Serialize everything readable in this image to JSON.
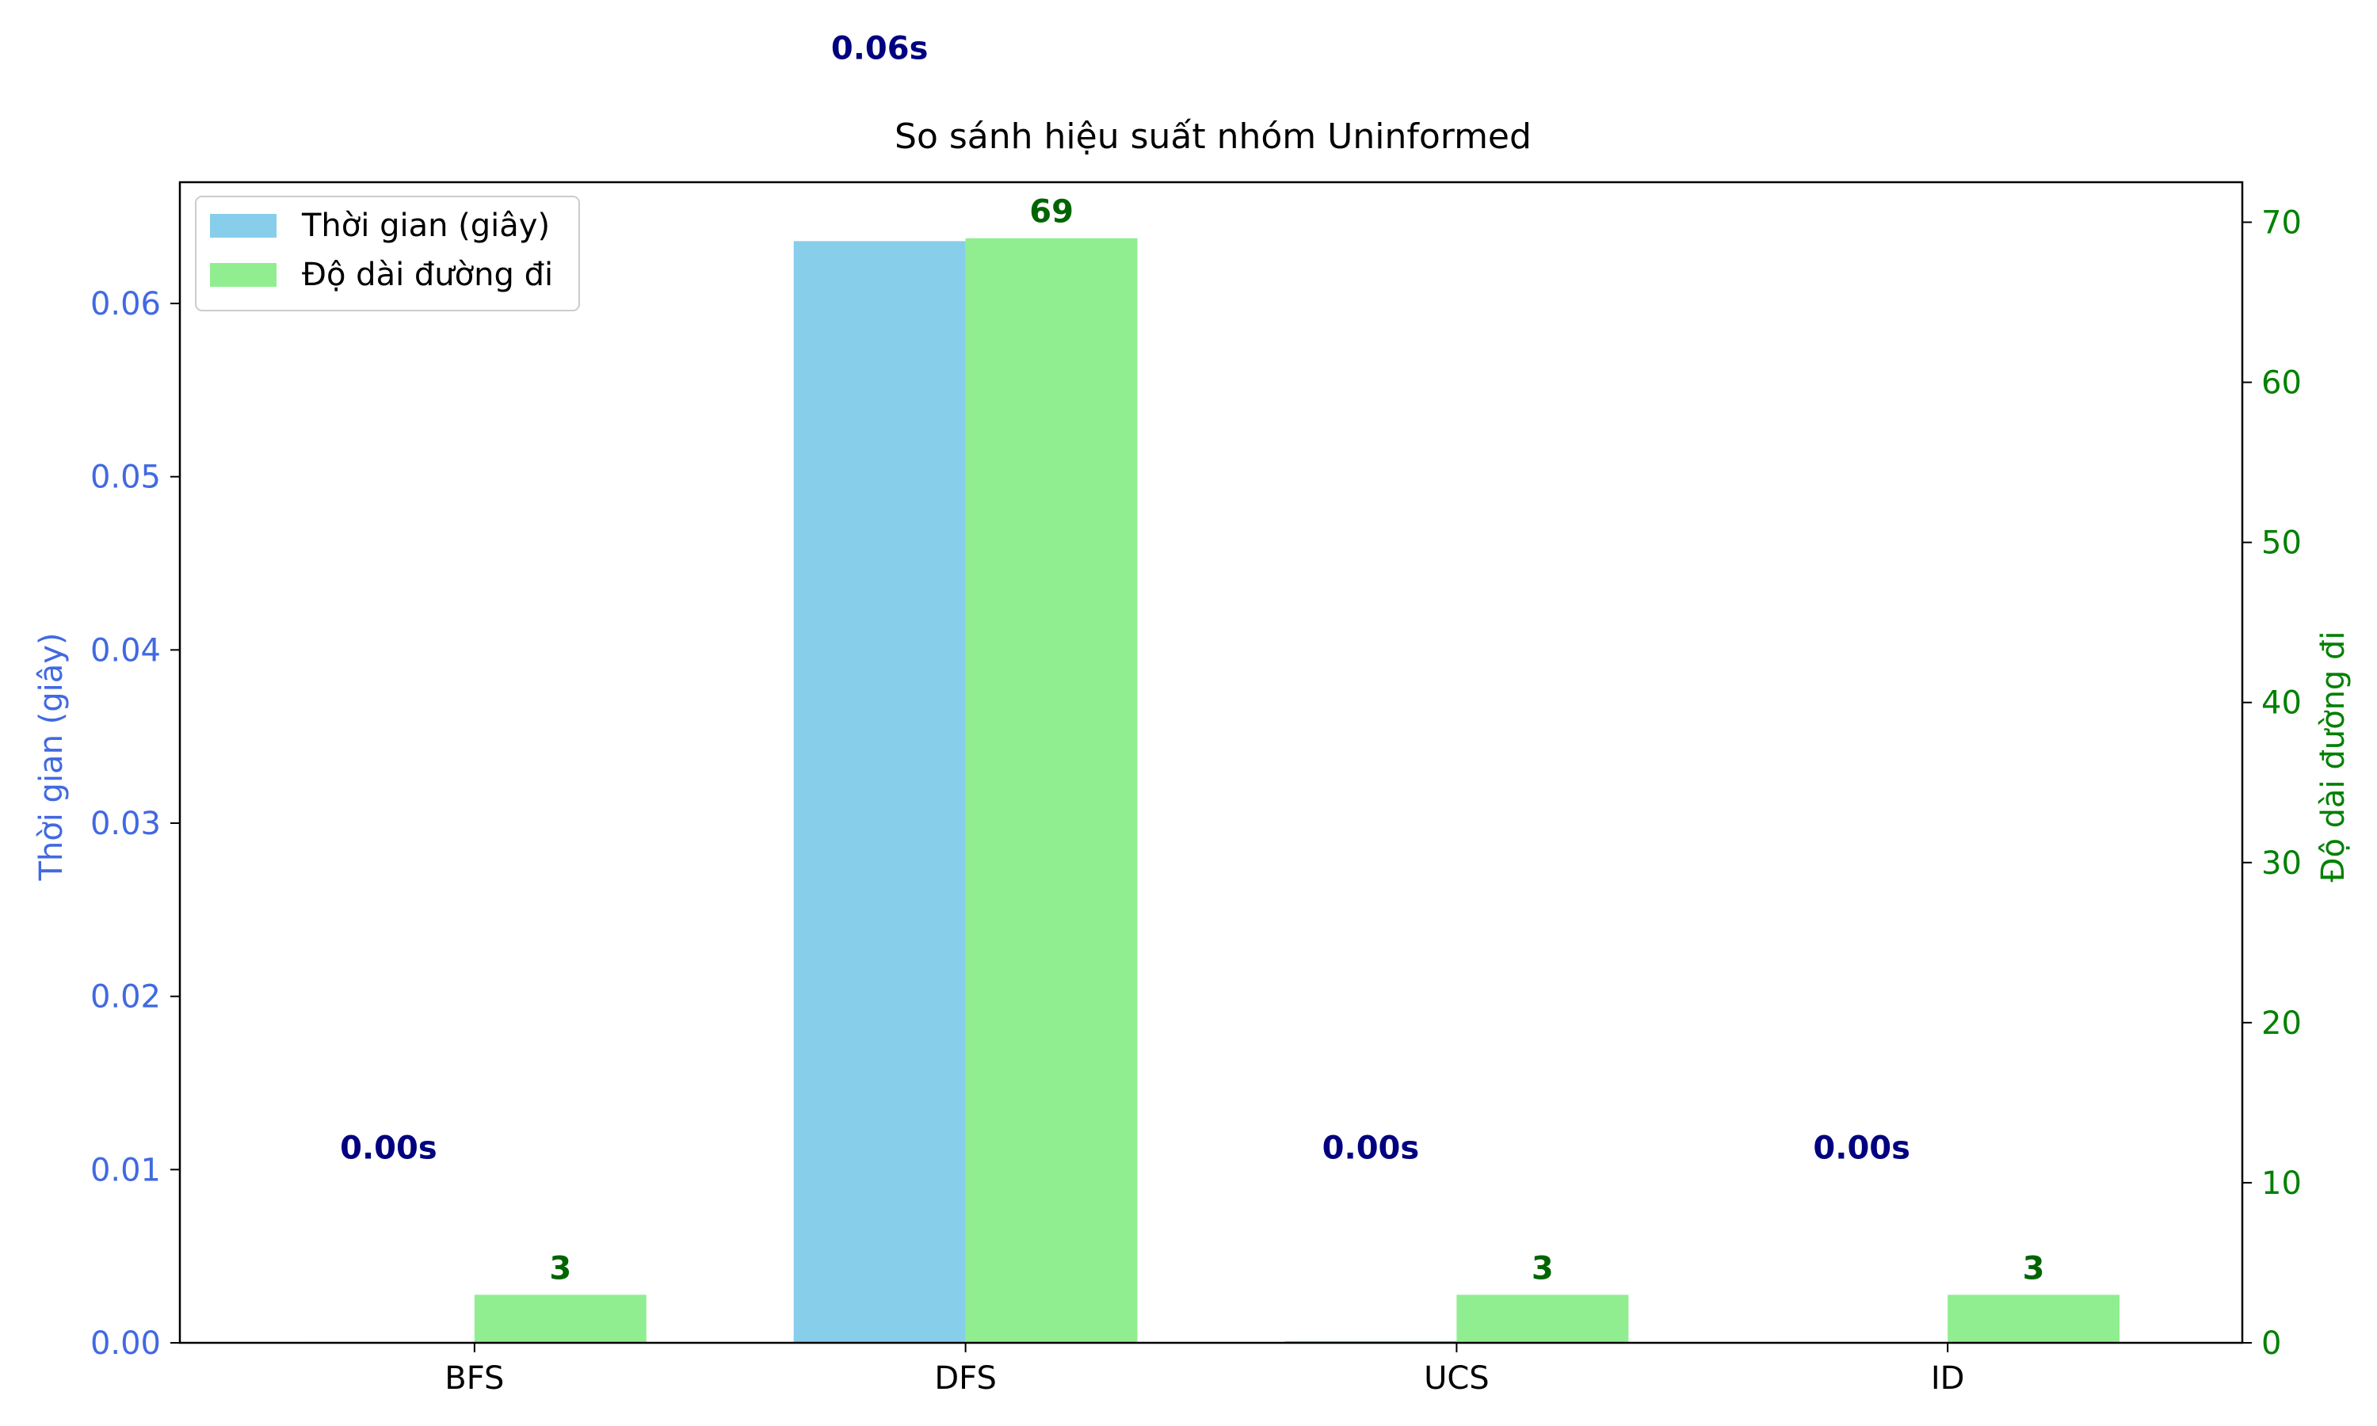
{
  "chart_data": {
    "type": "bar",
    "title": "So sánh hiệu suất nhóm Uninformed",
    "categories": [
      "BFS",
      "DFS",
      "UCS",
      "ID"
    ],
    "left_axis": {
      "label": "Thời gian (giây)",
      "ylim": [
        0,
        0.067
      ],
      "ticks": [
        0.0,
        0.01,
        0.02,
        0.03,
        0.04,
        0.05,
        0.06
      ],
      "tick_labels": [
        "0.00",
        "0.01",
        "0.02",
        "0.03",
        "0.04",
        "0.05",
        "0.06"
      ],
      "color": "#4169e1"
    },
    "right_axis": {
      "label": "Độ dài đường đi",
      "ylim": [
        0,
        72.5
      ],
      "ticks": [
        0,
        10,
        20,
        30,
        40,
        50,
        60,
        70
      ],
      "tick_labels": [
        "0",
        "10",
        "20",
        "30",
        "40",
        "50",
        "60",
        "70"
      ],
      "color": "#008000"
    },
    "series": [
      {
        "name": "Thời gian (giây)",
        "axis": "left",
        "color": "#87ceeb",
        "values": [
          5e-05,
          0.0636,
          0.0001,
          5e-05
        ],
        "labels": [
          "0.00s",
          "0.06s",
          "0.00s",
          "0.00s"
        ],
        "label_color": "#000080"
      },
      {
        "name": "Độ dài đường đi",
        "axis": "right",
        "color": "#90ee90",
        "values": [
          3,
          69,
          3,
          3
        ],
        "labels": [
          "3",
          "69",
          "3",
          "3"
        ],
        "label_color": "#006400"
      }
    ],
    "legend_position": "top-left",
    "grid": false
  }
}
